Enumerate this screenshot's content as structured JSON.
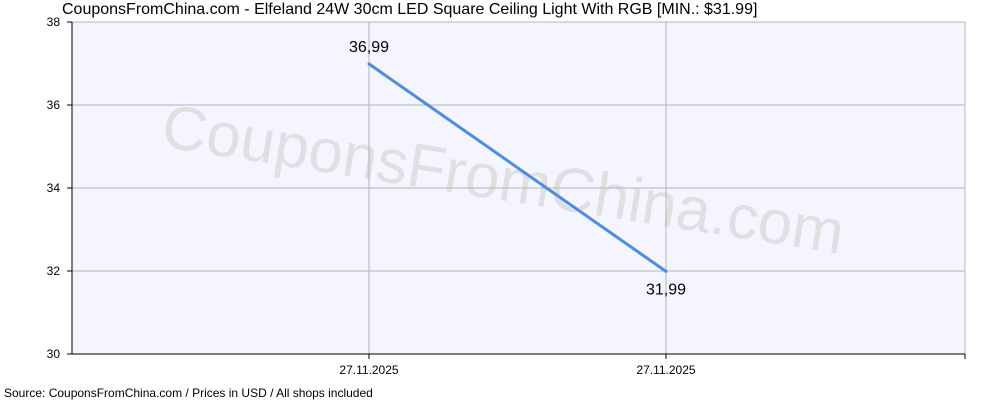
{
  "header": {
    "title": "CouponsFromChina.com - Elfeland 24W 30cm LED Square Ceiling Light With RGB [MIN.: $31.99]"
  },
  "footer": {
    "source": "Source: CouponsFromChina.com / Prices in USD / All shops included"
  },
  "watermark": {
    "text": "CouponsFromChina.com"
  },
  "colors": {
    "line": "#4a8ee4",
    "plot_background": "#f5f5ff",
    "grid": "#b4b4b4",
    "axis": "#000000"
  },
  "chart_data": {
    "type": "line",
    "title": "CouponsFromChina.com - Elfeland 24W 30cm LED Square Ceiling Light With RGB [MIN.: $31.99]",
    "xlabel": "",
    "ylabel": "",
    "ylim": [
      30,
      38
    ],
    "yticks": [
      30,
      32,
      34,
      36,
      38
    ],
    "xticks": [
      "27.11.2025",
      "27.11.2025"
    ],
    "grid": true,
    "series": [
      {
        "points": [
          {
            "x": "27.11.2025",
            "y": 36.99,
            "label": "36,99"
          },
          {
            "x": "27.11.2025",
            "y": 31.99,
            "label": "31,99"
          }
        ]
      }
    ]
  }
}
